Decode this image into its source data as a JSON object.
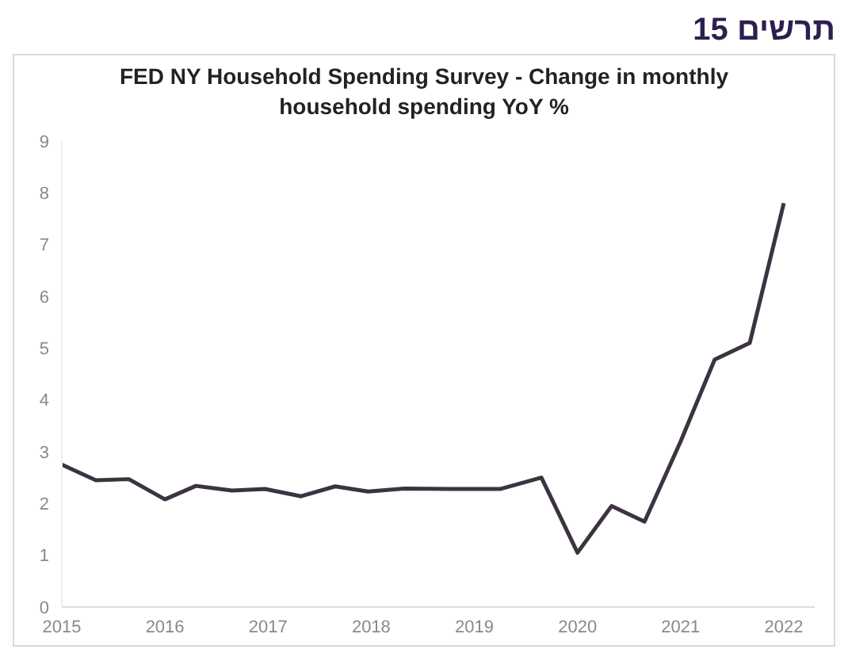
{
  "chart_data": {
    "type": "line",
    "title": "תרשים 15",
    "subtitle": "FED NY Household Spending Survey - Change in monthly household spending YoY %",
    "x": [
      2015,
      2015.33,
      2015.65,
      2016,
      2016.3,
      2016.65,
      2016.97,
      2017.32,
      2017.65,
      2017.97,
      2018.33,
      2018.75,
      2019.25,
      2019.65,
      2020,
      2020.33,
      2020.65,
      2021,
      2021.33,
      2021.67,
      2022
    ],
    "series": [
      {
        "color": "#3d3340",
        "values": [
          2.75,
          2.45,
          2.47,
          2.08,
          2.34,
          2.25,
          2.28,
          2.14,
          2.33,
          2.23,
          2.29,
          2.28,
          2.28,
          2.5,
          1.05,
          1.95,
          1.65,
          3.2,
          4.78,
          5.1,
          7.8
        ]
      }
    ],
    "xlim": [
      2015,
      2022.3
    ],
    "xticks": [
      2015,
      2016,
      2017,
      2018,
      2019,
      2020,
      2021,
      2022
    ],
    "ylim": [
      0,
      9
    ],
    "yticks": [
      0,
      1,
      2,
      3,
      4,
      5,
      6,
      7,
      8,
      9
    ],
    "marker": "none",
    "line_style": "solid"
  }
}
